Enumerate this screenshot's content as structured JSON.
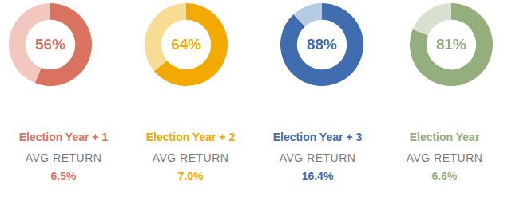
{
  "chart_data": [
    {
      "type": "doughnut",
      "title": "Election Year + 1",
      "values": [
        56,
        44
      ],
      "value_labels": [
        "56%",
        null
      ],
      "colors": [
        "#d9735f",
        "#f2c7be"
      ],
      "data_labels": true,
      "annotations": [
        "AVG RETURN",
        "6.5%"
      ]
    },
    {
      "type": "doughnut",
      "title": "Election Year + 2",
      "values": [
        64,
        36
      ],
      "value_labels": [
        "64%",
        null
      ],
      "colors": [
        "#f2a900",
        "#f9dc93"
      ],
      "data_labels": true,
      "annotations": [
        "AVG RETURN",
        "7.0%"
      ]
    },
    {
      "type": "doughnut",
      "title": "Election Year + 3",
      "values": [
        88,
        12
      ],
      "value_labels": [
        "88%",
        null
      ],
      "colors": [
        "#3f6daf",
        "#b4cbe3"
      ],
      "data_labels": true,
      "annotations": [
        "AVG RETURN",
        "16.4%"
      ]
    },
    {
      "type": "doughnut",
      "title": "Election Year",
      "values": [
        81,
        19
      ],
      "value_labels": [
        "81%",
        null
      ],
      "colors": [
        "#94ae7e",
        "#d9e0d0"
      ],
      "data_labels": true,
      "annotations": [
        "AVG RETURN",
        "6.6%"
      ]
    }
  ]
}
